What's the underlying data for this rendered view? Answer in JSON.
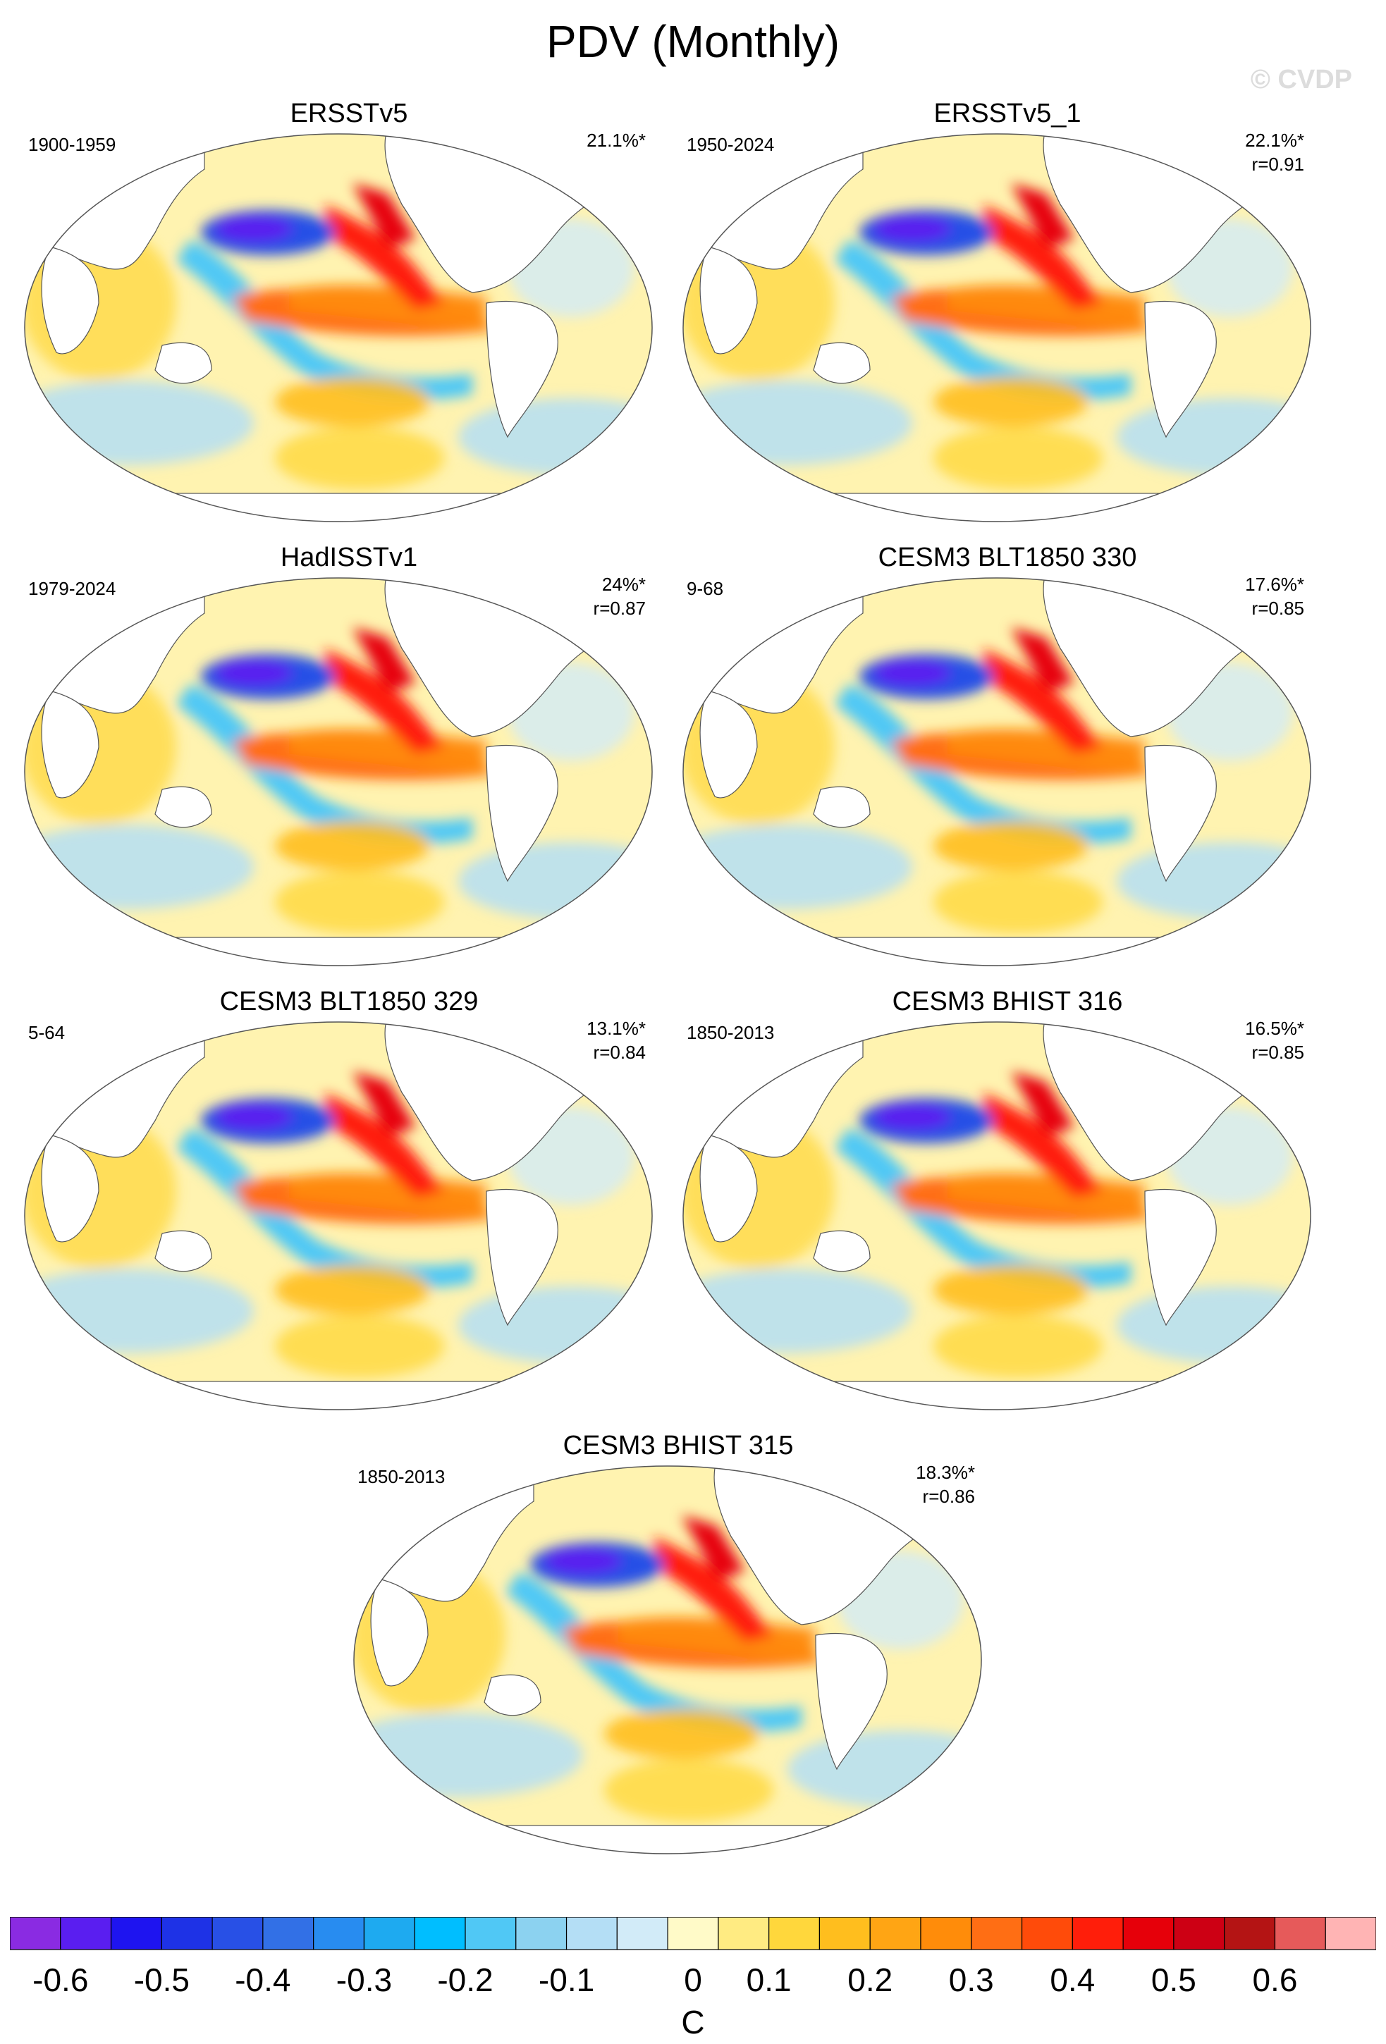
{
  "figure": {
    "title": "PDV (Monthly)",
    "copyright": "© CVDP",
    "units": "C"
  },
  "panels": [
    {
      "title": "ERSSTv5",
      "period": "1900-1959",
      "pct": "21.1%*",
      "corr": ""
    },
    {
      "title": "ERSSTv5_1",
      "period": "1950-2024",
      "pct": "22.1%*",
      "corr": "r=0.91"
    },
    {
      "title": "HadISSTv1",
      "period": "1979-2024",
      "pct": "24%*",
      "corr": "r=0.87"
    },
    {
      "title": "CESM3 BLT1850 330",
      "period": "9-68",
      "pct": "17.6%*",
      "corr": "r=0.85"
    },
    {
      "title": "CESM3 BLT1850 329",
      "period": "5-64",
      "pct": "13.1%*",
      "corr": "r=0.84"
    },
    {
      "title": "CESM3 BHIST 316",
      "period": "1850-2013",
      "pct": "16.5%*",
      "corr": "r=0.85"
    },
    {
      "title": "CESM3 BHIST 315",
      "period": "1850-2013",
      "pct": "18.3%*",
      "corr": "r=0.86"
    }
  ],
  "colorbar": {
    "colors": [
      "#8a2be2",
      "#5a1ef0",
      "#1e14f0",
      "#1e32e6",
      "#2850e6",
      "#3270e6",
      "#288cf0",
      "#1eaaf0",
      "#00beff",
      "#50c8f5",
      "#8cd2f0",
      "#b4def5",
      "#d2ebf8",
      "#fffac8",
      "#ffeb82",
      "#ffd73c",
      "#ffbe1e",
      "#ffa514",
      "#ff8c0a",
      "#ff6e14",
      "#ff4b0a",
      "#ff1e0a",
      "#e6000a",
      "#cd0014",
      "#b41414",
      "#e65a5a",
      "#ffb4b4"
    ],
    "labels": [
      "-0.6",
      "-0.5",
      "-0.4",
      "-0.3",
      "-0.2",
      "-0.1",
      "0",
      "0.1",
      "0.2",
      "0.3",
      "0.4",
      "0.5",
      "0.6"
    ]
  }
}
